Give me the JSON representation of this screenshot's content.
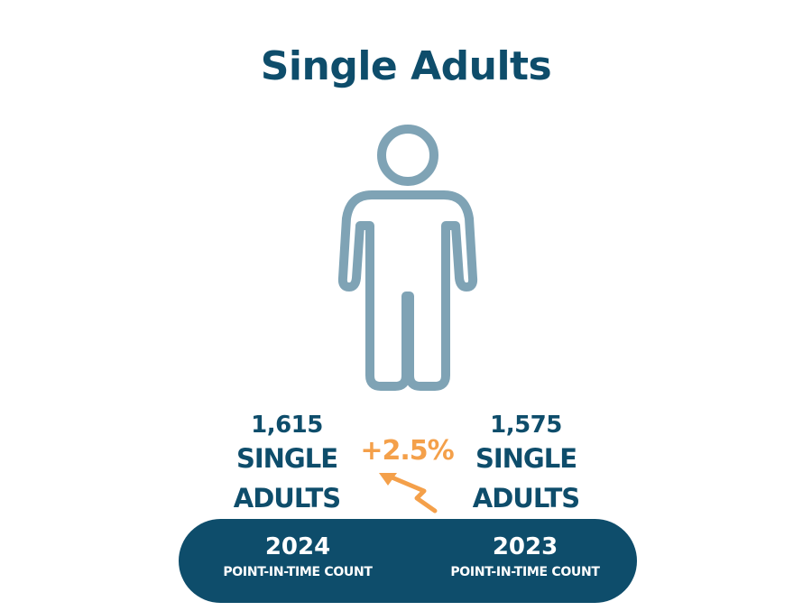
{
  "title": "Single Adults",
  "left_stat": {
    "number": "1,615",
    "label_line1": "SINGLE",
    "label_line2": "ADULTS"
  },
  "right_stat": {
    "number": "1,575",
    "label_line1": "SINGLE",
    "label_line2": "ADULTS"
  },
  "change": "+2.5%",
  "footer": {
    "left_year": "2024",
    "left_caption": "POINT-IN-TIME COUNT",
    "right_year": "2023",
    "right_caption": "POINT-IN-TIME COUNT"
  },
  "colors": {
    "primary": "#0e4d6b",
    "icon": "#7fa3b5",
    "accent": "#f4a04a"
  },
  "icons": {
    "figure": "person-icon",
    "trend": "increase-arrow-icon"
  }
}
